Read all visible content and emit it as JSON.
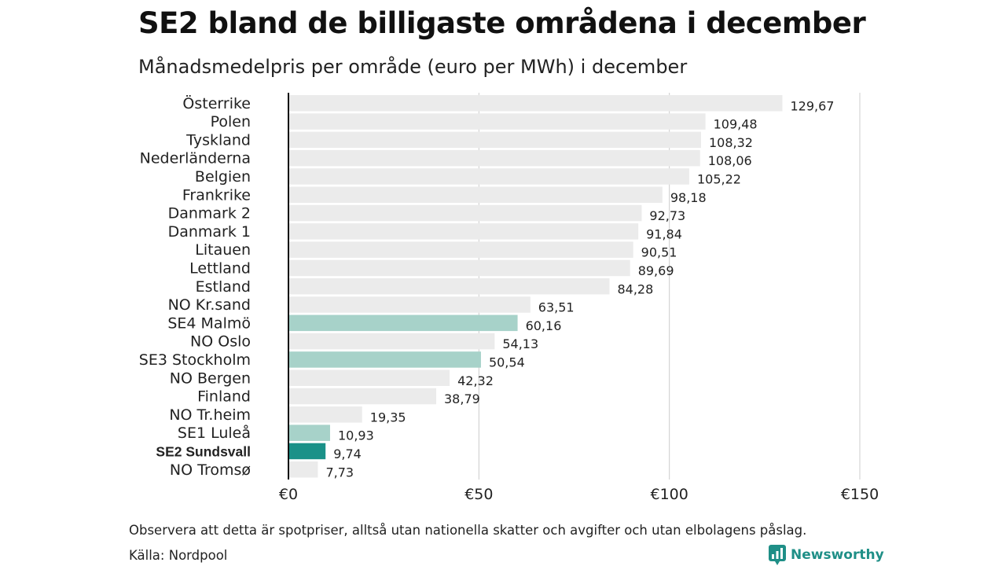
{
  "title": "SE2 bland de billigaste områdena i december",
  "subtitle": "Månadsmedelpris per område (euro per MWh) i december",
  "note": "Observera att detta är spotpriser, alltså utan nationella skatter och avgifter och utan elbolagens påslag.",
  "source": "Källa: Nordpool",
  "brand": "Newsworthy",
  "colors": {
    "default": "#ebebeb",
    "other_se": "#a7d2c9",
    "highlight": "#1a9188",
    "grid": "#cccccc",
    "axis": "#111111",
    "brand": "#1f8f87"
  },
  "chart_data": {
    "type": "bar",
    "orientation": "horizontal",
    "categories": [
      "Österrike",
      "Polen",
      "Tyskland",
      "Nederländerna",
      "Belgien",
      "Frankrike",
      "Danmark  2",
      "Danmark  1",
      "Litauen",
      "Lettland",
      "Estland",
      "NO Kr.sand",
      "SE4  Malmö",
      "NO Oslo",
      "SE3  Stockholm",
      "NO Bergen",
      "Finland",
      "NO Tr.heim",
      "SE1  Luleå",
      "SE2 Sundsvall",
      "NO Tromsø"
    ],
    "values": [
      129.67,
      109.48,
      108.32,
      108.06,
      105.22,
      98.18,
      92.73,
      91.84,
      90.51,
      89.69,
      84.28,
      63.51,
      60.16,
      54.13,
      50.54,
      42.32,
      38.79,
      19.35,
      10.93,
      9.74,
      7.73
    ],
    "value_labels": [
      "129,67",
      "109,48",
      "108,32",
      "108,06",
      "105,22",
      "98,18",
      "92,73",
      "91,84",
      "90,51",
      "89,69",
      "84,28",
      "63,51",
      "60,16",
      "54,13",
      "50,54",
      "42,32",
      "38,79",
      "19,35",
      "10,93",
      "9,74",
      "7,73"
    ],
    "bar_color_keys": [
      "default",
      "default",
      "default",
      "default",
      "default",
      "default",
      "default",
      "default",
      "default",
      "default",
      "default",
      "default",
      "other_se",
      "default",
      "other_se",
      "default",
      "default",
      "default",
      "other_se",
      "highlight",
      "default"
    ],
    "bold_category": "SE2 Sundsvall",
    "xlim": [
      0,
      150
    ],
    "xticks": [
      0,
      50,
      100,
      150
    ],
    "xtick_labels": [
      "€0",
      "€50",
      "€100",
      "€150"
    ],
    "grid": true,
    "legend": false
  }
}
